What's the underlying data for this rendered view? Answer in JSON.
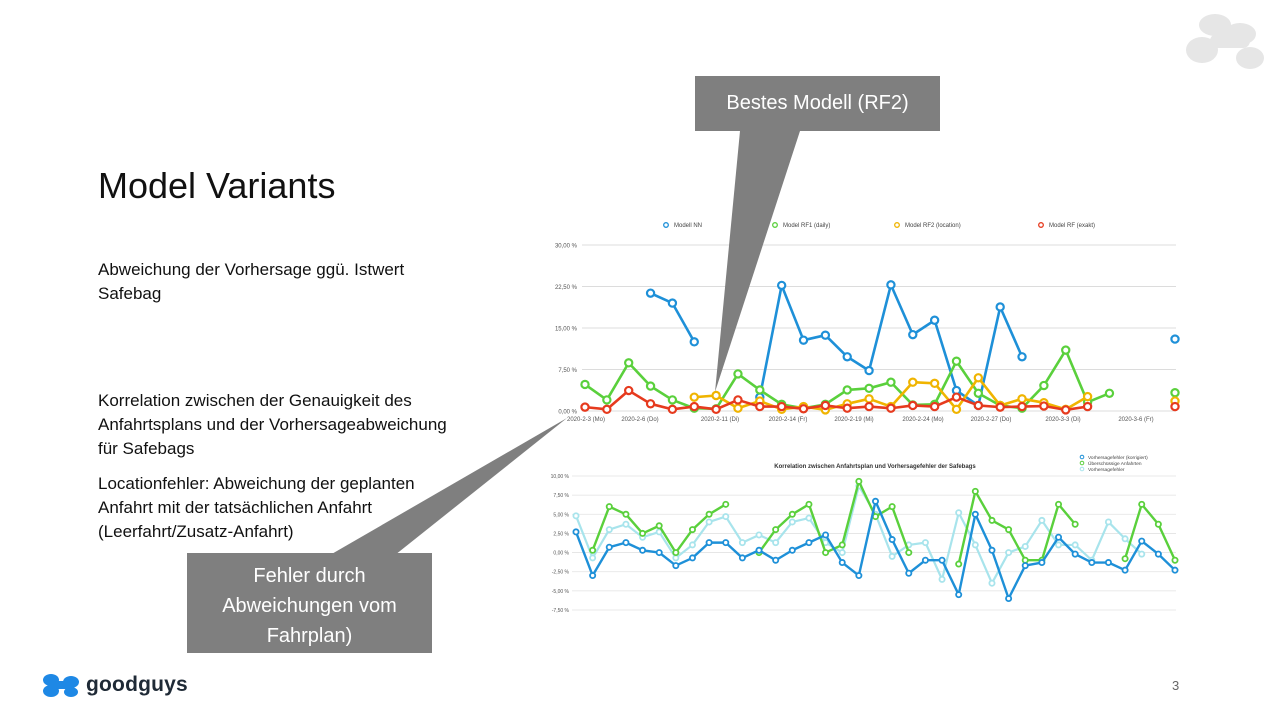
{
  "slide": {
    "title": "Model Variants",
    "text_deviation": "Abweichung der Vorhersage ggü. Istwert Safebag",
    "text_correlation": "Korrelation zwischen der Genauigkeit des Anfahrtsplans und der Vorhersageabweichung für Safebags",
    "text_location": "Locationfehler: Abweichung der geplanten Anfahrt mit der tatsächlichen Anfahrt (Leerfahrt/Zusatz-Anfahrt)",
    "page_number": "3"
  },
  "callouts": {
    "best_model": "Bestes Modell (RF2)",
    "schedule_error": "Fehler durch Abweichungen vom Fahrplan)"
  },
  "brand": {
    "name": "goodguys",
    "logo_icon": "goodguys-logo-icon",
    "accent": "#1e88e5"
  },
  "chart_data": [
    {
      "type": "line",
      "title": "",
      "ylim": [
        0,
        30
      ],
      "y_ticks": [
        "0,00 %",
        "7,50 %",
        "15,00 %",
        "22,50 %",
        "30,00 %"
      ],
      "x_tick_labels": [
        "2020-2-3 (Mo)",
        "2020-2-6 (Do)",
        "2020-2-11 (Di)",
        "2020-2-14 (Fr)",
        "2020-2-19 (Mi)",
        "2020-2-24 (Mo)",
        "2020-2-27 (Do)",
        "2020-3-3 (Di)",
        "2020-3-6 (Fr)"
      ],
      "legend_position": "top",
      "grid": true,
      "series": [
        {
          "name": "Modell NN",
          "color": "#1e90d8",
          "values": [
            null,
            null,
            null,
            21.3,
            19.5,
            12.5,
            null,
            null,
            2.5,
            22.7,
            12.8,
            13.7,
            9.8,
            7.3,
            22.8,
            13.8,
            16.4,
            3.7,
            1.0,
            18.8,
            9.8,
            null,
            null,
            null,
            null,
            null,
            null,
            13.0
          ]
        },
        {
          "name": "Model RF1 (daily)",
          "color": "#5ad03c",
          "values": [
            4.8,
            2.0,
            8.7,
            4.5,
            2.0,
            0.5,
            0.4,
            6.7,
            3.8,
            1.2,
            0.5,
            1.2,
            3.8,
            4.1,
            5.2,
            1.1,
            1.2,
            9.0,
            3.2,
            1.0,
            0.5,
            4.6,
            11.0,
            1.6,
            3.2,
            null,
            null,
            3.3
          ]
        },
        {
          "name": "Model RF2 (location)",
          "color": "#f0b400",
          "values": [
            null,
            null,
            null,
            null,
            null,
            2.5,
            2.8,
            0.5,
            1.8,
            0.3,
            0.8,
            0.2,
            1.3,
            2.2,
            0.8,
            5.2,
            5.0,
            0.3,
            6.0,
            1.0,
            2.2,
            1.5,
            0.3,
            2.6,
            null,
            null,
            null,
            1.8
          ]
        },
        {
          "name": "Model RF (exakt)",
          "color": "#e63a1e",
          "values": [
            0.7,
            0.3,
            3.7,
            1.3,
            0.3,
            0.8,
            0.3,
            2.0,
            0.8,
            0.8,
            0.4,
            1.0,
            0.5,
            0.8,
            0.5,
            1.0,
            0.8,
            2.5,
            1.0,
            0.7,
            0.8,
            0.9,
            0.2,
            0.8,
            null,
            null,
            null,
            0.8
          ]
        }
      ]
    },
    {
      "type": "line",
      "title": "Korrelation zwischen Anfahrtsplan und Vorhersagefehler der Safebags",
      "ylim": [
        -7.5,
        10
      ],
      "y_ticks": [
        "-7,50 %",
        "-5,00 %",
        "-2,50 %",
        "0,00 %",
        "2,50 %",
        "5,00 %",
        "7,50 %",
        "10,00 %"
      ],
      "legend_position": "top-right",
      "grid": true,
      "series": [
        {
          "name": "Vorhersagefehler (korrigiert)",
          "color": "#1e90d8",
          "values": [
            2.7,
            -3.0,
            0.7,
            1.3,
            0.3,
            0.0,
            -1.7,
            -0.7,
            1.3,
            1.3,
            -0.7,
            0.3,
            -1.0,
            0.3,
            1.3,
            2.3,
            -1.3,
            -3.0,
            6.7,
            1.7,
            -2.7,
            -1.0,
            -1.0,
            -5.5,
            5.0,
            0.3,
            -6.0,
            -1.7,
            -1.3,
            2.0,
            -0.2,
            -1.3,
            -1.3,
            -2.3,
            1.5,
            -0.2,
            -2.3
          ]
        },
        {
          "name": "Überschüssige Anfahrten",
          "color": "#5ad03c",
          "values": [
            null,
            0.3,
            6.0,
            5.0,
            2.5,
            3.5,
            0.0,
            3.0,
            5.0,
            6.3,
            null,
            0.0,
            3.0,
            5.0,
            6.3,
            0.0,
            1.0,
            9.3,
            4.7,
            6.0,
            0.0,
            null,
            null,
            -1.5,
            8.0,
            4.2,
            3.0,
            -1.0,
            -1.0,
            6.3,
            3.7,
            null,
            null,
            -0.8,
            6.3,
            3.7,
            -1.0
          ]
        },
        {
          "name": "Vorhersagefehler",
          "color": "#a8e4ec",
          "values": [
            4.8,
            -0.7,
            3.0,
            3.7,
            2.0,
            2.7,
            -0.7,
            1.0,
            4.0,
            4.7,
            1.3,
            2.3,
            1.3,
            4.0,
            4.5,
            1.3,
            0.0,
            8.7,
            5.0,
            -0.5,
            1.0,
            1.3,
            -3.5,
            5.2,
            1.0,
            -4.0,
            0.0,
            0.8,
            4.2,
            1.0,
            1.0,
            -1.0,
            4.0,
            1.8,
            -0.2
          ]
        }
      ]
    }
  ]
}
